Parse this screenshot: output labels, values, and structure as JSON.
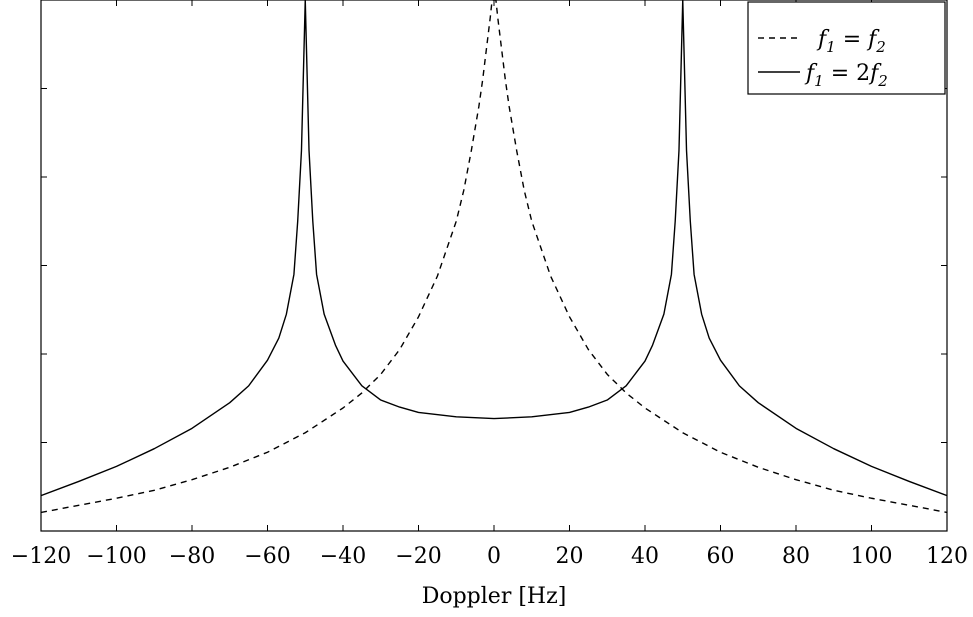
{
  "chart_data": {
    "type": "line",
    "title": "",
    "xlabel": "Doppler [Hz]",
    "ylabel": "",
    "xlim": [
      -120,
      120
    ],
    "ylim": [
      0,
      6
    ],
    "grid": false,
    "legend_position": "top-right",
    "x_ticks": [
      -120,
      -100,
      -80,
      -60,
      -40,
      -20,
      0,
      20,
      40,
      60,
      80,
      100,
      120
    ],
    "x_tick_labels": [
      "−120",
      "−100",
      "−80",
      "−60",
      "−40",
      "−20",
      "0",
      "20",
      "40",
      "60",
      "80",
      "100",
      "120"
    ],
    "y_ticks": [
      1,
      2,
      3,
      4,
      5
    ],
    "series": [
      {
        "name": "f1 = f2",
        "style": "dashed",
        "color": "#000000",
        "peaks": [
          0
        ],
        "x": [
          -120,
          -110,
          -100,
          -90,
          -80,
          -70,
          -60,
          -50,
          -40,
          -35,
          -30,
          -25,
          -20,
          -15,
          -10,
          -8,
          -6,
          -4,
          -3,
          -2,
          -1,
          -0.5,
          0.5,
          1,
          2,
          3,
          4,
          6,
          8,
          10,
          15,
          20,
          25,
          30,
          35,
          40,
          50,
          60,
          70,
          80,
          90,
          100,
          110,
          120
        ],
        "y": [
          0.21,
          0.29,
          0.37,
          0.46,
          0.58,
          0.72,
          0.89,
          1.11,
          1.39,
          1.56,
          1.77,
          2.05,
          2.42,
          2.88,
          3.5,
          3.85,
          4.3,
          4.8,
          5.1,
          5.45,
          5.8,
          6.0,
          6.0,
          5.8,
          5.45,
          5.1,
          4.8,
          4.3,
          3.85,
          3.5,
          2.88,
          2.42,
          2.05,
          1.77,
          1.56,
          1.39,
          1.11,
          0.89,
          0.72,
          0.58,
          0.46,
          0.37,
          0.29,
          0.21
        ]
      },
      {
        "name": "f1 = 2f2",
        "style": "solid",
        "color": "#000000",
        "peaks": [
          -50,
          50
        ],
        "x": [
          -120,
          -110,
          -100,
          -90,
          -80,
          -70,
          -65,
          -60,
          -57,
          -55,
          -53,
          -52,
          -51,
          -50,
          -49,
          -48,
          -47,
          -45,
          -42,
          -40,
          -35,
          -30,
          -25,
          -20,
          -10,
          0,
          10,
          20,
          25,
          30,
          35,
          40,
          42,
          45,
          47,
          48,
          49,
          50,
          51,
          52,
          53,
          55,
          57,
          60,
          65,
          70,
          80,
          90,
          100,
          110,
          120
        ],
        "y": [
          0.4,
          0.56,
          0.73,
          0.93,
          1.16,
          1.45,
          1.64,
          1.93,
          2.18,
          2.45,
          2.9,
          3.5,
          4.3,
          6.0,
          4.3,
          3.5,
          2.9,
          2.45,
          2.1,
          1.92,
          1.64,
          1.48,
          1.4,
          1.34,
          1.29,
          1.27,
          1.29,
          1.34,
          1.4,
          1.48,
          1.64,
          1.92,
          2.1,
          2.45,
          2.9,
          3.5,
          4.3,
          6.0,
          4.3,
          3.5,
          2.9,
          2.45,
          2.18,
          1.93,
          1.64,
          1.45,
          1.16,
          0.93,
          0.73,
          0.56,
          0.4
        ]
      }
    ]
  },
  "legend": {
    "entries": [
      {
        "label_main": "f",
        "sub1": "1",
        "eq": " = ",
        "pre2": "",
        "main2": "f",
        "sub2": "2"
      },
      {
        "label_main": "f",
        "sub1": "1",
        "eq": " = ",
        "pre2": "2",
        "main2": "f",
        "sub2": "2"
      }
    ]
  }
}
